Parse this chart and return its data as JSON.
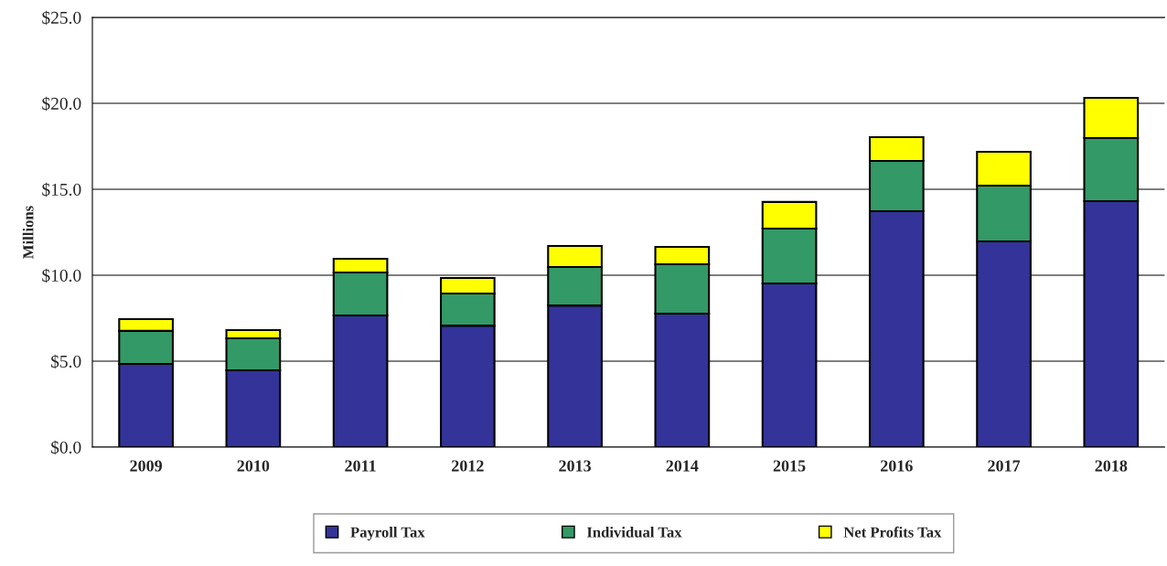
{
  "chart_data": {
    "type": "bar",
    "stacked": true,
    "ylabel": "Millions",
    "categories": [
      "2009",
      "2010",
      "2011",
      "2012",
      "2013",
      "2014",
      "2015",
      "2016",
      "2017",
      "2018"
    ],
    "series": [
      {
        "name": "Payroll Tax",
        "color": "#333399",
        "values": [
          4.84,
          4.47,
          7.66,
          7.07,
          8.24,
          7.77,
          9.52,
          13.72,
          11.97,
          14.31
        ]
      },
      {
        "name": "Individual Tax",
        "color": "#339966",
        "values": [
          1.92,
          1.86,
          2.5,
          1.87,
          2.24,
          2.87,
          3.19,
          2.93,
          3.24,
          3.67
        ]
      },
      {
        "name": "Net Profits Tax",
        "color": "#ffff00",
        "values": [
          0.69,
          0.48,
          0.8,
          0.9,
          1.22,
          1.01,
          1.55,
          1.38,
          1.97,
          2.34
        ]
      }
    ],
    "ylim": [
      0,
      25
    ],
    "yticks": [
      {
        "value": 0,
        "label": "$0.0"
      },
      {
        "value": 5,
        "label": "$5.0"
      },
      {
        "value": 10,
        "label": "$10.0"
      },
      {
        "value": 15,
        "label": "$15.0"
      },
      {
        "value": 20,
        "label": "$20.0"
      },
      {
        "value": 25,
        "label": "$25.0"
      }
    ],
    "grid": "y",
    "legend": "bottom"
  }
}
